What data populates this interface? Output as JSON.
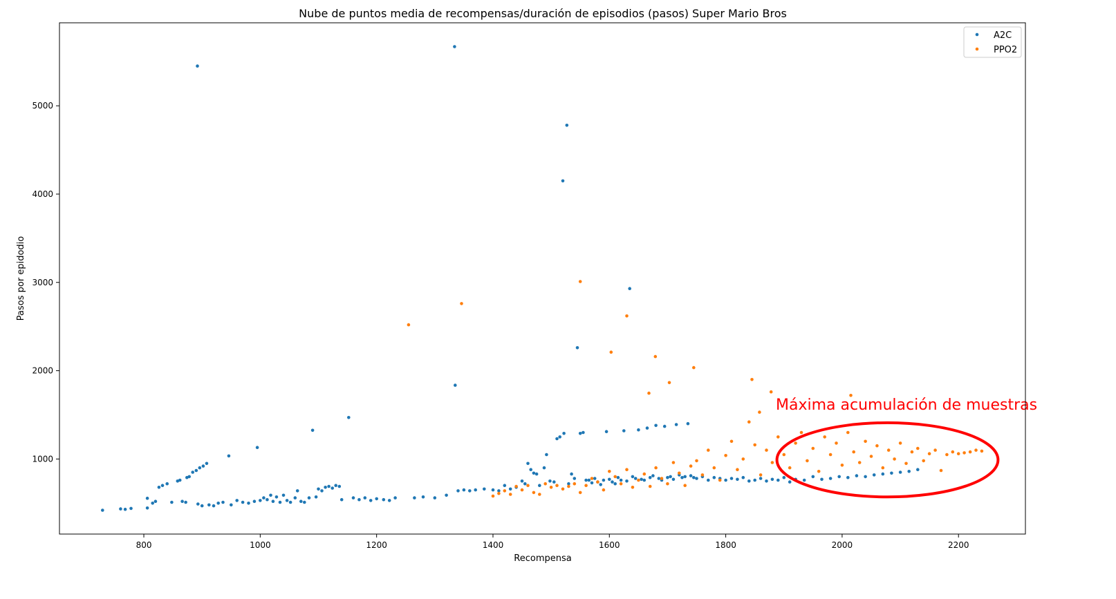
{
  "chart_data": {
    "type": "scatter",
    "title": "Nube de puntos media de recompensas/duración de episodios (pasos) Super Mario Bros",
    "xlabel": "Recompensa",
    "ylabel": "Pasos por epidodio",
    "xlim": [
      655,
      2315
    ],
    "ylim": [
      150,
      5940
    ],
    "xticks": [
      800,
      1000,
      1200,
      1400,
      1600,
      1800,
      2000,
      2200
    ],
    "yticks": [
      1000,
      2000,
      3000,
      4000,
      5000
    ],
    "grid": false,
    "legend": "top-right",
    "annotation": {
      "text": "Máxima acumulación de muestras",
      "color": "#ff0000",
      "ellipse_center": [
        2078,
        990
      ],
      "ellipse_radius": [
        190,
        420
      ]
    },
    "series": [
      {
        "name": "A2C",
        "color": "#1f77b4",
        "points": [
          [
            729,
            420
          ],
          [
            760,
            435
          ],
          [
            768,
            430
          ],
          [
            778,
            440
          ],
          [
            806,
            445
          ],
          [
            806,
            555
          ],
          [
            815,
            500
          ],
          [
            820,
            520
          ],
          [
            826,
            680
          ],
          [
            832,
            700
          ],
          [
            840,
            720
          ],
          [
            848,
            510
          ],
          [
            858,
            750
          ],
          [
            862,
            760
          ],
          [
            866,
            520
          ],
          [
            872,
            510
          ],
          [
            874,
            790
          ],
          [
            878,
            800
          ],
          [
            884,
            850
          ],
          [
            890,
            870
          ],
          [
            893,
            490
          ],
          [
            896,
            900
          ],
          [
            900,
            470
          ],
          [
            902,
            920
          ],
          [
            908,
            950
          ],
          [
            912,
            480
          ],
          [
            920,
            470
          ],
          [
            928,
            500
          ],
          [
            936,
            510
          ],
          [
            946,
            1035
          ],
          [
            950,
            480
          ],
          [
            960,
            530
          ],
          [
            970,
            510
          ],
          [
            980,
            500
          ],
          [
            990,
            520
          ],
          [
            995,
            1130
          ],
          [
            1000,
            530
          ],
          [
            1006,
            560
          ],
          [
            1012,
            540
          ],
          [
            1018,
            590
          ],
          [
            1022,
            520
          ],
          [
            1028,
            570
          ],
          [
            1034,
            510
          ],
          [
            1040,
            590
          ],
          [
            1046,
            530
          ],
          [
            1052,
            510
          ],
          [
            1060,
            560
          ],
          [
            1064,
            640
          ],
          [
            1070,
            520
          ],
          [
            1076,
            510
          ],
          [
            1084,
            560
          ],
          [
            1090,
            1325
          ],
          [
            1096,
            570
          ],
          [
            1100,
            660
          ],
          [
            1106,
            640
          ],
          [
            1112,
            680
          ],
          [
            1118,
            690
          ],
          [
            1124,
            670
          ],
          [
            1130,
            700
          ],
          [
            1136,
            690
          ],
          [
            1140,
            540
          ],
          [
            1152,
            1470
          ],
          [
            1160,
            560
          ],
          [
            1170,
            540
          ],
          [
            1180,
            560
          ],
          [
            1190,
            530
          ],
          [
            1200,
            550
          ],
          [
            1212,
            540
          ],
          [
            1222,
            530
          ],
          [
            1232,
            560
          ],
          [
            1265,
            560
          ],
          [
            1280,
            570
          ],
          [
            1300,
            560
          ],
          [
            1320,
            590
          ],
          [
            1335,
            1835
          ],
          [
            1340,
            640
          ],
          [
            1350,
            650
          ],
          [
            1360,
            640
          ],
          [
            1370,
            650
          ],
          [
            1385,
            660
          ],
          [
            1400,
            650
          ],
          [
            1410,
            640
          ],
          [
            1420,
            700
          ],
          [
            1430,
            660
          ],
          [
            1440,
            680
          ],
          [
            1450,
            750
          ],
          [
            1455,
            720
          ],
          [
            1460,
            950
          ],
          [
            1465,
            880
          ],
          [
            1470,
            840
          ],
          [
            1475,
            830
          ],
          [
            1480,
            700
          ],
          [
            1488,
            900
          ],
          [
            1492,
            1050
          ],
          [
            1498,
            750
          ],
          [
            1505,
            740
          ],
          [
            1510,
            1230
          ],
          [
            1515,
            1250
          ],
          [
            1520,
            4150
          ],
          [
            1522,
            1290
          ],
          [
            1527,
            4780
          ],
          [
            1530,
            720
          ],
          [
            1535,
            830
          ],
          [
            1540,
            780
          ],
          [
            1545,
            2260
          ],
          [
            1550,
            1290
          ],
          [
            1555,
            1300
          ],
          [
            1560,
            760
          ],
          [
            1565,
            760
          ],
          [
            1570,
            730
          ],
          [
            1575,
            780
          ],
          [
            1580,
            740
          ],
          [
            1585,
            710
          ],
          [
            1590,
            760
          ],
          [
            1595,
            1310
          ],
          [
            1600,
            770
          ],
          [
            1605,
            740
          ],
          [
            1610,
            720
          ],
          [
            1615,
            790
          ],
          [
            1620,
            760
          ],
          [
            1625,
            1320
          ],
          [
            1630,
            750
          ],
          [
            1635,
            2930
          ],
          [
            1640,
            800
          ],
          [
            1645,
            780
          ],
          [
            1650,
            1330
          ],
          [
            1655,
            770
          ],
          [
            1660,
            760
          ],
          [
            1665,
            1350
          ],
          [
            1670,
            790
          ],
          [
            1675,
            810
          ],
          [
            1680,
            1380
          ],
          [
            1685,
            780
          ],
          [
            1690,
            760
          ],
          [
            1695,
            1370
          ],
          [
            1700,
            790
          ],
          [
            1705,
            800
          ],
          [
            1710,
            770
          ],
          [
            1715,
            1390
          ],
          [
            1720,
            820
          ],
          [
            1725,
            790
          ],
          [
            1730,
            800
          ],
          [
            1735,
            1400
          ],
          [
            1740,
            810
          ],
          [
            1745,
            790
          ],
          [
            1750,
            780
          ],
          [
            1760,
            800
          ],
          [
            1770,
            760
          ],
          [
            1780,
            790
          ],
          [
            1790,
            780
          ],
          [
            1800,
            760
          ],
          [
            1810,
            780
          ],
          [
            1820,
            770
          ],
          [
            1830,
            790
          ],
          [
            1840,
            750
          ],
          [
            1850,
            760
          ],
          [
            1860,
            780
          ],
          [
            1870,
            750
          ],
          [
            1880,
            770
          ],
          [
            1890,
            760
          ],
          [
            1900,
            790
          ],
          [
            1910,
            740
          ],
          [
            1920,
            770
          ],
          [
            1935,
            760
          ],
          [
            1950,
            800
          ],
          [
            1965,
            770
          ],
          [
            1980,
            780
          ],
          [
            1995,
            800
          ],
          [
            2010,
            790
          ],
          [
            2025,
            810
          ],
          [
            2040,
            800
          ],
          [
            2055,
            820
          ],
          [
            2070,
            830
          ],
          [
            2085,
            840
          ],
          [
            2100,
            850
          ],
          [
            2115,
            860
          ],
          [
            2130,
            880
          ],
          [
            892,
            5450
          ],
          [
            1334,
            5670
          ]
        ]
      },
      {
        "name": "PPO2",
        "color": "#ff7f0e",
        "points": [
          [
            1255,
            2520
          ],
          [
            1346,
            2760
          ],
          [
            1550,
            3010
          ],
          [
            1603,
            2210
          ],
          [
            1630,
            2620
          ],
          [
            1668,
            1745
          ],
          [
            1679,
            2160
          ],
          [
            1703,
            1865
          ],
          [
            1745,
            2035
          ],
          [
            1845,
            1900
          ],
          [
            1858,
            1530
          ],
          [
            1878,
            1760
          ],
          [
            2015,
            1720
          ],
          [
            1400,
            580
          ],
          [
            1410,
            610
          ],
          [
            1420,
            640
          ],
          [
            1430,
            600
          ],
          [
            1440,
            690
          ],
          [
            1450,
            650
          ],
          [
            1460,
            700
          ],
          [
            1470,
            620
          ],
          [
            1480,
            600
          ],
          [
            1490,
            720
          ],
          [
            1500,
            680
          ],
          [
            1510,
            700
          ],
          [
            1520,
            660
          ],
          [
            1530,
            690
          ],
          [
            1540,
            720
          ],
          [
            1550,
            620
          ],
          [
            1560,
            700
          ],
          [
            1570,
            780
          ],
          [
            1580,
            740
          ],
          [
            1590,
            650
          ],
          [
            1600,
            860
          ],
          [
            1610,
            800
          ],
          [
            1620,
            720
          ],
          [
            1630,
            880
          ],
          [
            1640,
            680
          ],
          [
            1650,
            760
          ],
          [
            1660,
            830
          ],
          [
            1670,
            690
          ],
          [
            1680,
            900
          ],
          [
            1690,
            780
          ],
          [
            1700,
            720
          ],
          [
            1710,
            960
          ],
          [
            1720,
            840
          ],
          [
            1730,
            700
          ],
          [
            1740,
            920
          ],
          [
            1750,
            980
          ],
          [
            1760,
            820
          ],
          [
            1770,
            1100
          ],
          [
            1780,
            900
          ],
          [
            1790,
            760
          ],
          [
            1800,
            1040
          ],
          [
            1810,
            1200
          ],
          [
            1820,
            880
          ],
          [
            1830,
            1000
          ],
          [
            1840,
            1420
          ],
          [
            1850,
            1160
          ],
          [
            1860,
            820
          ],
          [
            1870,
            1100
          ],
          [
            1880,
            960
          ],
          [
            1890,
            1250
          ],
          [
            1900,
            1050
          ],
          [
            1910,
            900
          ],
          [
            1920,
            1180
          ],
          [
            1930,
            1300
          ],
          [
            1940,
            980
          ],
          [
            1950,
            1120
          ],
          [
            1960,
            860
          ],
          [
            1970,
            1250
          ],
          [
            1980,
            1050
          ],
          [
            1990,
            1180
          ],
          [
            2000,
            930
          ],
          [
            2010,
            1300
          ],
          [
            2020,
            1080
          ],
          [
            2030,
            960
          ],
          [
            2040,
            1200
          ],
          [
            2050,
            1030
          ],
          [
            2060,
            1150
          ],
          [
            2070,
            900
          ],
          [
            2080,
            1100
          ],
          [
            2090,
            1000
          ],
          [
            2100,
            1180
          ],
          [
            2110,
            950
          ],
          [
            2120,
            1080
          ],
          [
            2130,
            1120
          ],
          [
            2140,
            980
          ],
          [
            2150,
            1060
          ],
          [
            2160,
            1100
          ],
          [
            2170,
            870
          ],
          [
            2180,
            1050
          ],
          [
            2190,
            1080
          ],
          [
            2200,
            1060
          ],
          [
            2210,
            1070
          ],
          [
            2220,
            1080
          ],
          [
            2230,
            1100
          ],
          [
            2240,
            1090
          ]
        ]
      }
    ]
  }
}
